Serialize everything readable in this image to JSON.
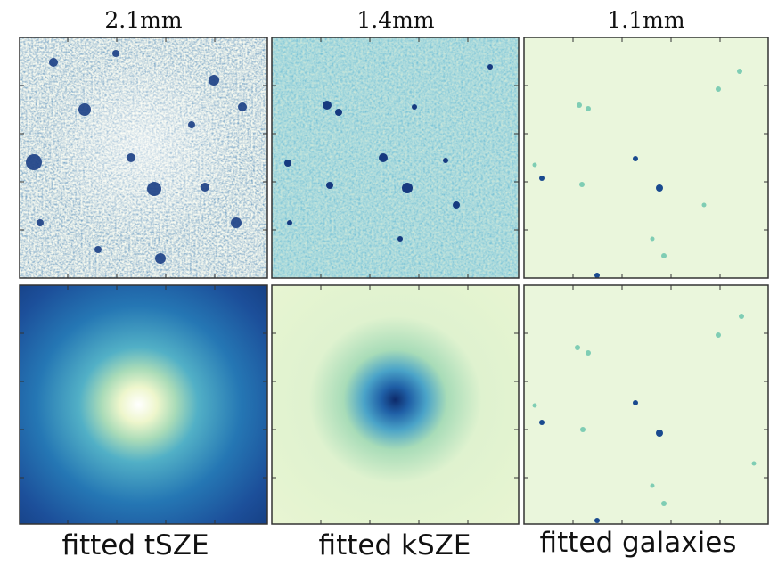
{
  "columns": [
    {
      "title": "2.1mm",
      "label": "fitted tSZE"
    },
    {
      "title": "1.4mm",
      "label": "fitted kSZE"
    },
    {
      "title": "1.1mm",
      "label": "fitted galaxies"
    }
  ]
}
